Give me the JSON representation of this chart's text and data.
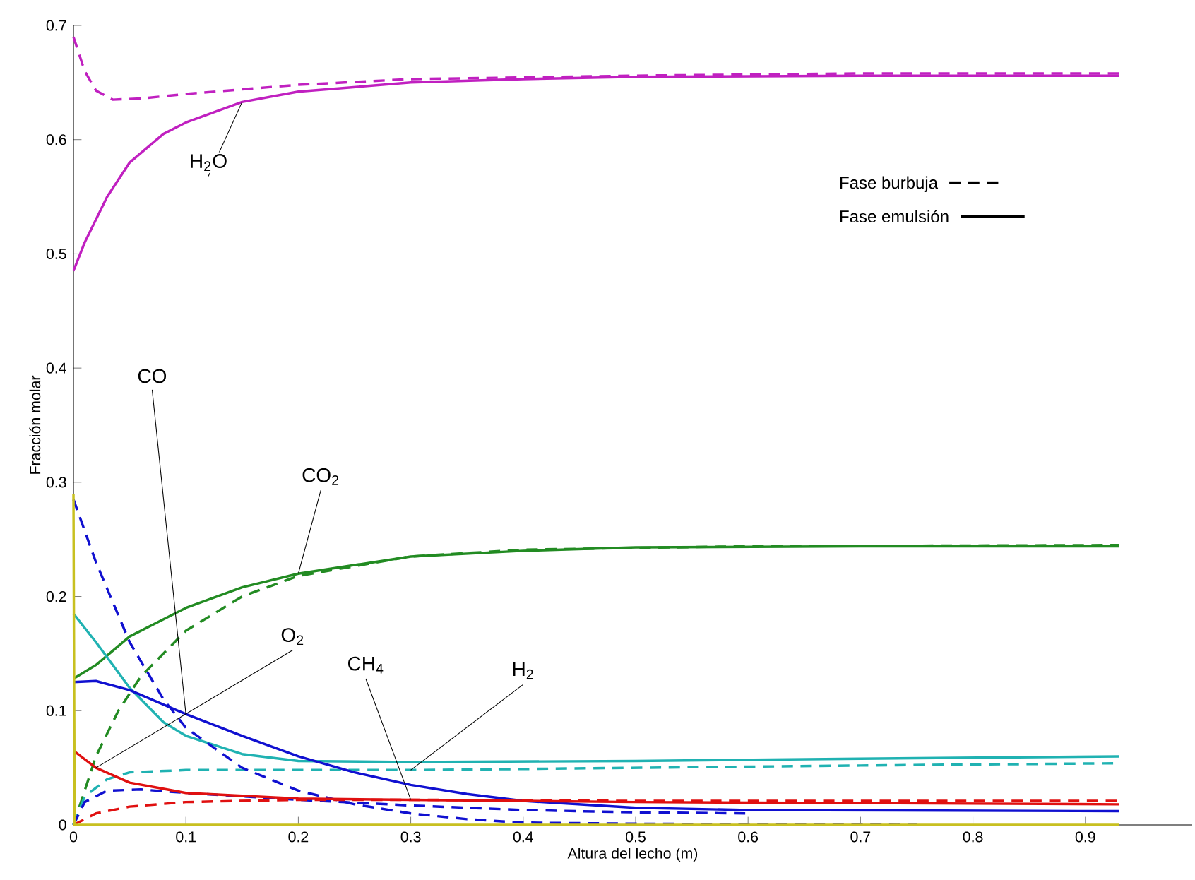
{
  "chart_data": {
    "type": "line",
    "xlabel": "Altura del lecho (m)",
    "ylabel": "Fracción molar",
    "xlim": [
      0,
      0.995
    ],
    "ylim": [
      0,
      0.7
    ],
    "xticks": [
      0,
      0.1,
      0.2,
      0.3,
      0.4,
      0.5,
      0.6,
      0.7,
      0.8,
      0.9
    ],
    "yticks": [
      0,
      0.1,
      0.2,
      0.3,
      0.4,
      0.5,
      0.6,
      0.7
    ],
    "grid": false,
    "marker": "none",
    "series": [
      {
        "color": "#c020c0",
        "line_style": "solid",
        "x": [
          0,
          0.01,
          0.03,
          0.05,
          0.08,
          0.1,
          0.15,
          0.2,
          0.3,
          0.4,
          0.5,
          0.7,
          0.93
        ],
        "values": [
          0.485,
          0.51,
          0.55,
          0.58,
          0.605,
          0.615,
          0.633,
          0.642,
          0.65,
          0.653,
          0.655,
          0.656,
          0.656
        ]
      },
      {
        "color": "#c020c0",
        "line_style": "dashed",
        "x": [
          0,
          0.01,
          0.02,
          0.035,
          0.06,
          0.1,
          0.2,
          0.3,
          0.5,
          0.7,
          0.93
        ],
        "values": [
          0.69,
          0.66,
          0.643,
          0.635,
          0.636,
          0.64,
          0.648,
          0.653,
          0.656,
          0.658,
          0.658
        ]
      },
      {
        "color": "#228b22",
        "line_style": "solid",
        "x": [
          0,
          0.02,
          0.05,
          0.1,
          0.15,
          0.2,
          0.3,
          0.4,
          0.5,
          0.7,
          0.93
        ],
        "values": [
          0.128,
          0.14,
          0.165,
          0.19,
          0.208,
          0.22,
          0.235,
          0.24,
          0.243,
          0.244,
          0.244
        ]
      },
      {
        "color": "#228b22",
        "line_style": "dashed",
        "x": [
          0,
          0.02,
          0.04,
          0.06,
          0.1,
          0.15,
          0.2,
          0.3,
          0.4,
          0.6,
          0.93
        ],
        "values": [
          0.0,
          0.06,
          0.1,
          0.13,
          0.17,
          0.2,
          0.218,
          0.235,
          0.241,
          0.244,
          0.245
        ]
      },
      {
        "color": "#20b2b2",
        "line_style": "solid",
        "x": [
          0,
          0.02,
          0.05,
          0.08,
          0.1,
          0.15,
          0.2,
          0.3,
          0.5,
          0.7,
          0.93
        ],
        "values": [
          0.185,
          0.16,
          0.12,
          0.09,
          0.078,
          0.062,
          0.056,
          0.055,
          0.056,
          0.058,
          0.06
        ]
      },
      {
        "color": "#20b2b2",
        "line_style": "dashed",
        "x": [
          0,
          0.01,
          0.03,
          0.05,
          0.1,
          0.3,
          0.5,
          0.7,
          0.93
        ],
        "values": [
          0.0,
          0.025,
          0.04,
          0.046,
          0.048,
          0.048,
          0.05,
          0.052,
          0.054
        ]
      },
      {
        "color": "#1010d0",
        "line_style": "solid",
        "x": [
          0,
          0.02,
          0.05,
          0.1,
          0.15,
          0.2,
          0.25,
          0.3,
          0.35,
          0.4,
          0.5,
          0.6,
          0.93
        ],
        "values": [
          0.125,
          0.126,
          0.118,
          0.097,
          0.078,
          0.06,
          0.046,
          0.035,
          0.027,
          0.021,
          0.015,
          0.013,
          0.012
        ]
      },
      {
        "color": "#1010d0",
        "line_style": "dashed",
        "x": [
          0,
          0.02,
          0.05,
          0.08,
          0.1,
          0.15,
          0.2,
          0.25,
          0.3,
          0.35,
          0.4,
          0.5,
          0.75
        ],
        "values": [
          0.285,
          0.23,
          0.16,
          0.11,
          0.085,
          0.05,
          0.03,
          0.018,
          0.01,
          0.005,
          0.002,
          0.001,
          0.0
        ]
      },
      {
        "color": "#1010d0",
        "line_style": "dashed",
        "x": [
          0,
          0.01,
          0.03,
          0.06,
          0.1,
          0.2,
          0.3,
          0.4,
          0.5,
          0.6
        ],
        "values": [
          0.0,
          0.02,
          0.03,
          0.031,
          0.028,
          0.022,
          0.017,
          0.013,
          0.011,
          0.01
        ]
      },
      {
        "color": "#e01010",
        "line_style": "solid",
        "x": [
          0,
          0.02,
          0.05,
          0.1,
          0.2,
          0.3,
          0.5,
          0.93
        ],
        "values": [
          0.065,
          0.05,
          0.037,
          0.028,
          0.023,
          0.022,
          0.02,
          0.018
        ]
      },
      {
        "color": "#e01010",
        "line_style": "dashed",
        "x": [
          0,
          0.02,
          0.05,
          0.1,
          0.2,
          0.3,
          0.5,
          0.93
        ],
        "values": [
          0.0,
          0.01,
          0.016,
          0.02,
          0.022,
          0.022,
          0.021,
          0.021
        ]
      },
      {
        "color": "#c8c020",
        "line_style": "solid",
        "x": [
          0,
          0.001,
          0.93
        ],
        "values": [
          0.29,
          0.0,
          0.0
        ]
      }
    ],
    "annotations": [
      "Fase burbuja",
      "Fase emulsión",
      {
        "text": "H$_{2}$O",
        "x": 0.15,
        "y": 0.633
      },
      {
        "text": "CO",
        "x": 0.1,
        "y": 0.097
      },
      {
        "text": "CO$_{2}$",
        "x": 0.2,
        "y": 0.22
      },
      {
        "text": "O$_{2}$",
        "x": 0.02,
        "y": 0.05
      },
      {
        "text": "CH$_{4}$",
        "x": 0.3,
        "y": 0.022
      },
      {
        "text": "H$_{2}$",
        "x": 0.3,
        "y": 0.048
      }
    ]
  }
}
